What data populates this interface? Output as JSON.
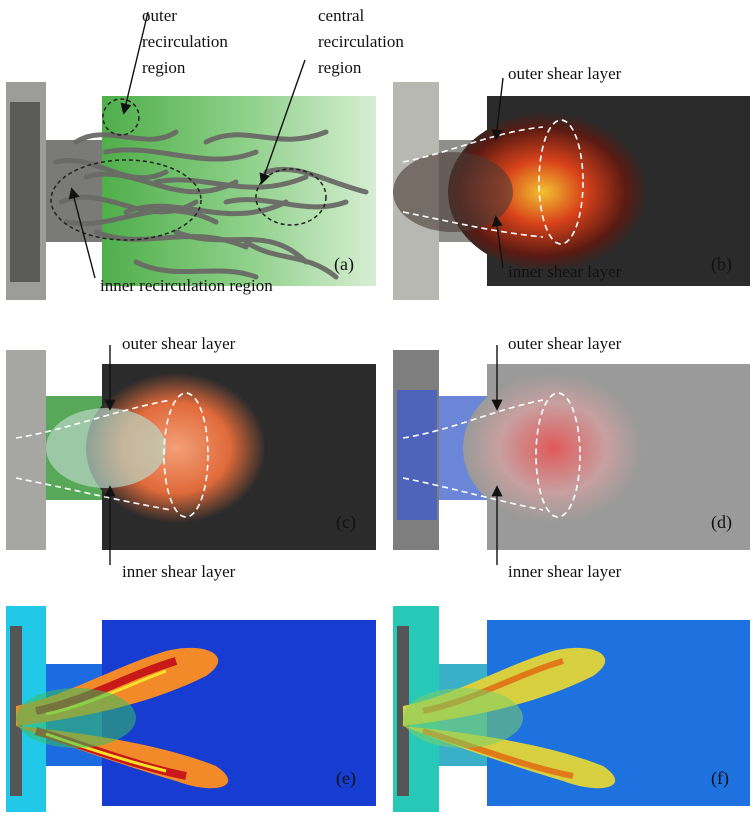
{
  "panels": [
    {
      "id": "a",
      "label": "(a)"
    },
    {
      "id": "b",
      "label": "(b)"
    },
    {
      "id": "c",
      "label": "(c)"
    },
    {
      "id": "d",
      "label": "(d)"
    },
    {
      "id": "e",
      "label": "(e)"
    },
    {
      "id": "f",
      "label": "(f)"
    }
  ],
  "annotations": {
    "a_outer": [
      "outer",
      "recirculation",
      "region"
    ],
    "a_central": [
      "central",
      "recirculation",
      "region"
    ],
    "a_inner": "inner recirculation region",
    "b_outer": "outer shear layer",
    "b_inner": "inner shear layer",
    "c_outer": "outer shear layer",
    "c_inner": "inner shear layer",
    "d_outer": "outer shear layer",
    "d_inner": "inner shear layer"
  },
  "colors": {
    "green_bg": "#cfe9c9",
    "dark_bg": "#2b2b2b",
    "gray_bg": "#9a9a9a",
    "jet_blue": "#0f3fd8",
    "flame_red": "#d8221a",
    "flame_yellow": "#f5c825"
  }
}
